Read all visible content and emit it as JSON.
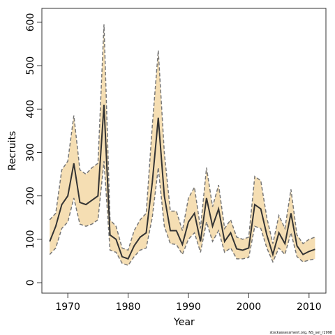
{
  "chart_data": {
    "type": "line",
    "x_label": "Year",
    "y_label": "Recruits",
    "footnote": "stockassessment.org, NS_sel_r1998",
    "x": [
      1967,
      1968,
      1969,
      1970,
      1971,
      1972,
      1973,
      1974,
      1975,
      1976,
      1977,
      1978,
      1979,
      1980,
      1981,
      1982,
      1983,
      1984,
      1985,
      1986,
      1987,
      1988,
      1989,
      1990,
      1991,
      1992,
      1993,
      1994,
      1995,
      1996,
      1997,
      1998,
      1999,
      2000,
      2001,
      2002,
      2003,
      2004,
      2005,
      2006,
      2007,
      2008,
      2009,
      2010,
      2011
    ],
    "values": [
      95,
      130,
      180,
      200,
      275,
      185,
      180,
      190,
      200,
      410,
      110,
      100,
      60,
      55,
      85,
      105,
      115,
      230,
      380,
      200,
      120,
      120,
      88,
      140,
      160,
      95,
      195,
      130,
      170,
      95,
      115,
      78,
      75,
      80,
      180,
      170,
      110,
      65,
      115,
      90,
      160,
      85,
      65,
      72,
      77
    ],
    "ci_upper": [
      145,
      160,
      260,
      280,
      385,
      260,
      250,
      265,
      275,
      595,
      145,
      130,
      80,
      75,
      120,
      145,
      160,
      360,
      535,
      300,
      165,
      165,
      120,
      195,
      220,
      125,
      265,
      175,
      225,
      125,
      145,
      105,
      100,
      105,
      245,
      235,
      150,
      90,
      155,
      125,
      215,
      110,
      90,
      100,
      105
    ],
    "ci_lower": [
      65,
      80,
      125,
      140,
      195,
      135,
      130,
      135,
      145,
      280,
      75,
      70,
      45,
      40,
      60,
      75,
      80,
      150,
      265,
      130,
      90,
      88,
      65,
      100,
      115,
      70,
      140,
      95,
      120,
      70,
      80,
      55,
      55,
      58,
      130,
      125,
      80,
      48,
      80,
      65,
      115,
      60,
      48,
      52,
      55
    ],
    "color": "#333333",
    "band_color": "#f5deb3",
    "ci_line_color": "#777777",
    "xlim": [
      1965.7,
      2012.8
    ],
    "ylim": [
      -24,
      632
    ],
    "xticks": [
      1970,
      1980,
      1990,
      2000,
      2010
    ],
    "yticks": [
      0,
      100,
      200,
      300,
      400,
      500,
      600
    ]
  }
}
